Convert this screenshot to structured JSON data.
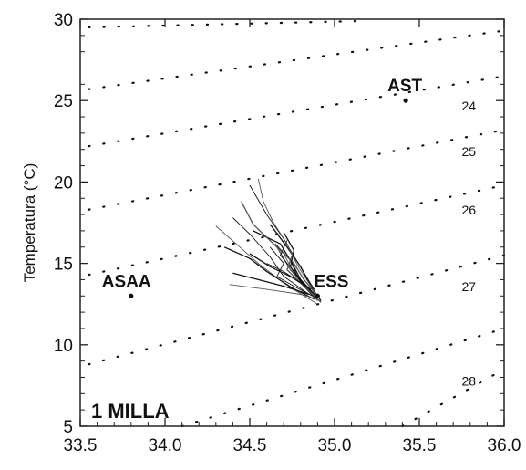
{
  "chart_data": {
    "type": "scatter",
    "title": "",
    "ylabel": "Temperatura (°C)",
    "xlabel": "",
    "xlim": [
      33.5,
      36.0
    ],
    "ylim": [
      5,
      30
    ],
    "x_ticks": [
      "33.5",
      "34.0",
      "34.5",
      "35.0",
      "35.5",
      "36.0"
    ],
    "y_ticks": [
      "5",
      "10",
      "15",
      "20",
      "25",
      "30"
    ],
    "grid": false,
    "annotation": "1 MILLA",
    "stations": [
      {
        "name": "AST",
        "x": 35.42,
        "y": 25.0
      },
      {
        "name": "ASAA",
        "x": 33.8,
        "y": 13.0
      },
      {
        "name": "ESS",
        "x": 34.9,
        "y": 13.0
      }
    ],
    "isopycnals": [
      {
        "label": "",
        "points": [
          [
            33.55,
            29.5
          ],
          [
            35.2,
            29.9
          ]
        ]
      },
      {
        "label": "24",
        "points": [
          [
            33.55,
            25.7
          ],
          [
            36.0,
            29.3
          ]
        ]
      },
      {
        "label": "25",
        "points": [
          [
            33.55,
            22.2
          ],
          [
            36.0,
            26.5
          ]
        ]
      },
      {
        "label": "26",
        "points": [
          [
            33.55,
            18.3
          ],
          [
            36.0,
            23.2
          ]
        ]
      },
      {
        "label": "27",
        "points": [
          [
            33.55,
            14.3
          ],
          [
            36.0,
            19.8
          ]
        ]
      },
      {
        "label": "28",
        "points": [
          [
            33.55,
            8.8
          ],
          [
            36.0,
            15.5
          ]
        ]
      },
      {
        "label": "",
        "points": [
          [
            34.1,
            5.0
          ],
          [
            36.0,
            11.0
          ]
        ]
      },
      {
        "label": "",
        "points": [
          [
            35.4,
            5.0
          ],
          [
            36.0,
            8.5
          ]
        ]
      }
    ],
    "isopycnal_label_positions": [
      {
        "label": "24",
        "x": 35.75,
        "y": 24.4
      },
      {
        "label": "25",
        "x": 35.75,
        "y": 21.6
      },
      {
        "label": "26",
        "x": 35.75,
        "y": 18.0
      },
      {
        "label": "27",
        "x": 35.75,
        "y": 13.3
      },
      {
        "label": "28",
        "x": 35.75,
        "y": 7.5
      }
    ],
    "profiles": [
      [
        [
          34.3,
          17.3
        ],
        [
          34.42,
          16.2
        ],
        [
          34.55,
          15.0
        ],
        [
          34.7,
          13.8
        ],
        [
          34.82,
          13.0
        ],
        [
          34.9,
          12.5
        ]
      ],
      [
        [
          34.35,
          16.0
        ],
        [
          34.5,
          15.3
        ],
        [
          34.6,
          14.5
        ],
        [
          34.75,
          13.5
        ],
        [
          34.88,
          12.8
        ]
      ],
      [
        [
          34.4,
          17.8
        ],
        [
          34.5,
          16.8
        ],
        [
          34.62,
          15.4
        ],
        [
          34.7,
          14.2
        ],
        [
          34.85,
          13.1
        ]
      ],
      [
        [
          34.45,
          18.8
        ],
        [
          34.52,
          17.4
        ],
        [
          34.66,
          16.0
        ],
        [
          34.74,
          14.6
        ],
        [
          34.86,
          13.2
        ],
        [
          34.92,
          12.6
        ]
      ],
      [
        [
          34.5,
          19.8
        ],
        [
          34.6,
          18.0
        ],
        [
          34.7,
          16.5
        ],
        [
          34.78,
          15.1
        ],
        [
          34.88,
          13.4
        ]
      ],
      [
        [
          34.52,
          17.0
        ],
        [
          34.68,
          16.2
        ],
        [
          34.75,
          15.0
        ],
        [
          34.8,
          14.0
        ],
        [
          34.9,
          12.9
        ]
      ],
      [
        [
          34.58,
          16.8
        ],
        [
          34.7,
          15.6
        ],
        [
          34.76,
          14.4
        ],
        [
          34.83,
          13.5
        ],
        [
          34.9,
          12.7
        ]
      ],
      [
        [
          34.62,
          17.4
        ],
        [
          34.72,
          16.0
        ],
        [
          34.8,
          14.8
        ],
        [
          34.86,
          13.6
        ],
        [
          34.92,
          12.7
        ]
      ],
      [
        [
          34.65,
          16.2
        ],
        [
          34.74,
          15.2
        ],
        [
          34.78,
          14.2
        ],
        [
          34.87,
          13.2
        ]
      ],
      [
        [
          34.68,
          15.8
        ],
        [
          34.76,
          15.0
        ],
        [
          34.82,
          14.0
        ],
        [
          34.9,
          13.0
        ]
      ],
      [
        [
          34.6,
          15.0
        ],
        [
          34.7,
          14.5
        ],
        [
          34.8,
          13.8
        ],
        [
          34.88,
          12.9
        ]
      ],
      [
        [
          34.4,
          14.4
        ],
        [
          34.55,
          14.0
        ],
        [
          34.7,
          13.6
        ],
        [
          34.85,
          13.1
        ]
      ],
      [
        [
          34.38,
          13.7
        ],
        [
          34.6,
          13.4
        ],
        [
          34.8,
          13.1
        ],
        [
          34.9,
          12.8
        ]
      ],
      [
        [
          34.7,
          16.9
        ],
        [
          34.76,
          15.8
        ],
        [
          34.74,
          14.8
        ],
        [
          34.8,
          13.9
        ],
        [
          34.86,
          13.2
        ]
      ],
      [
        [
          34.72,
          16.4
        ],
        [
          34.68,
          15.5
        ],
        [
          34.76,
          14.5
        ],
        [
          34.84,
          13.5
        ],
        [
          34.9,
          12.9
        ]
      ],
      [
        [
          34.75,
          15.5
        ],
        [
          34.72,
          14.6
        ],
        [
          34.8,
          13.8
        ],
        [
          34.88,
          13.0
        ]
      ],
      [
        [
          34.62,
          16.0
        ],
        [
          34.7,
          15.0
        ],
        [
          34.66,
          14.2
        ],
        [
          34.76,
          13.6
        ],
        [
          34.87,
          13.0
        ]
      ],
      [
        [
          34.5,
          15.6
        ],
        [
          34.62,
          14.8
        ],
        [
          34.74,
          14.2
        ],
        [
          34.86,
          13.4
        ]
      ],
      [
        [
          34.55,
          20.2
        ],
        [
          34.58,
          18.8
        ],
        [
          34.64,
          17.5
        ],
        [
          34.72,
          16.2
        ],
        [
          34.78,
          14.9
        ],
        [
          34.86,
          13.6
        ]
      ]
    ]
  }
}
